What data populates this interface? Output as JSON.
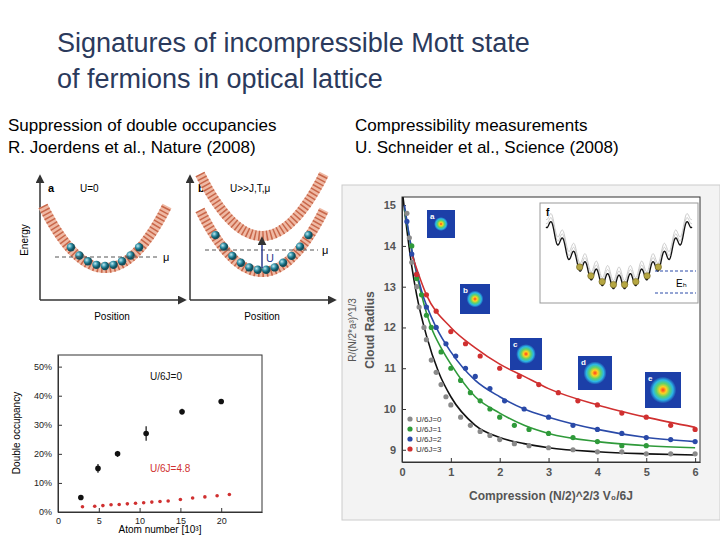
{
  "slide": {
    "title": [
      "Signatures of incompressible Mott state",
      "of fermions in optical lattice"
    ],
    "left_header": [
      "Suppression of double occupancies",
      "R. Joerdens et al., Nature (2008)"
    ],
    "right_header": [
      "Compressibility measurements",
      "U. Schneider et al., Science (2008)"
    ]
  },
  "schematic": {
    "panels": [
      {
        "letter": "a",
        "label": "U=0"
      },
      {
        "letter": "b",
        "label": "U>>J,T,μ"
      }
    ],
    "y_label": "Energy",
    "x_label": "Position",
    "mu": "μ",
    "u": "U"
  },
  "chart_data": [
    {
      "type": "scatter",
      "x_label": "Atom number [10³]",
      "y_label": "Double occupancy",
      "xlim": [
        0,
        25
      ],
      "ylim": [
        0,
        54
      ],
      "xticks": [
        0,
        5,
        10,
        15,
        20
      ],
      "yticks": [
        {
          "value": 0,
          "label": "0%"
        },
        {
          "value": 10,
          "label": "10%"
        },
        {
          "value": 20,
          "label": "20%"
        },
        {
          "value": 30,
          "label": "30%"
        },
        {
          "value": 40,
          "label": "40%"
        },
        {
          "value": 50,
          "label": "50%"
        }
      ],
      "series": [
        {
          "name": "U/6J=0",
          "color": "#111111",
          "marker": "circle",
          "x": [
            2.8,
            4.9,
            7.3,
            10.8,
            15.2,
            20.0
          ],
          "values": [
            5,
            15,
            20,
            27,
            34.5,
            38
          ],
          "errors": [
            0,
            1.5,
            1,
            2.5,
            1,
            0
          ]
        },
        {
          "name": "U/6J=4.8",
          "color": "#d03030",
          "marker": "circle",
          "x": [
            3,
            4.5,
            5.5,
            6.5,
            7.5,
            8.5,
            9.5,
            10.5,
            11.5,
            12.5,
            13.5,
            15,
            16.5,
            18,
            19.5,
            21
          ],
          "values": [
            1.8,
            2.0,
            2.2,
            2.5,
            2.6,
            2.8,
            3.0,
            3.2,
            3.4,
            3.6,
            3.8,
            4.3,
            4.8,
            5.2,
            5.6,
            6.0
          ]
        }
      ]
    },
    {
      "type": "scatter",
      "y_label": "Cloud Radius",
      "y_sublabel": "R/(N/2*a³)^1/3",
      "x_label": "Compression (N/2)^2/3 V₀/6J",
      "xlim": [
        0,
        6.1
      ],
      "ylim": [
        8.7,
        15.2
      ],
      "xticks": [
        0,
        1,
        2,
        3,
        4,
        5,
        6
      ],
      "yticks": [
        9,
        10,
        11,
        12,
        13,
        14,
        15
      ],
      "legend": "lower left",
      "series": [
        {
          "type": "line",
          "color": "#111111",
          "x": [
            0.02,
            0.1,
            0.2,
            0.3,
            0.5,
            0.75,
            1,
            1.5,
            2,
            2.5,
            3,
            4,
            5,
            6
          ],
          "values": [
            15.2,
            14.4,
            13.5,
            12.8,
            11.8,
            10.9,
            10.3,
            9.6,
            9.3,
            9.15,
            9.05,
            8.95,
            8.9,
            8.87
          ]
        },
        {
          "type": "line",
          "color": "#2f9a3a",
          "x": [
            0.05,
            0.2,
            0.4,
            0.6,
            0.8,
            1,
            1.5,
            2,
            2.5,
            3,
            4,
            5,
            6
          ],
          "values": [
            14.9,
            13.9,
            12.8,
            12.0,
            11.5,
            11.1,
            10.3,
            9.9,
            9.6,
            9.4,
            9.2,
            9.1,
            9.05
          ]
        },
        {
          "type": "line",
          "color": "#2a4aa8",
          "x": [
            0.05,
            0.2,
            0.4,
            0.7,
            1,
            1.5,
            2,
            2.5,
            3,
            4,
            5,
            6
          ],
          "values": [
            15.0,
            13.9,
            12.9,
            12.0,
            11.4,
            10.7,
            10.3,
            10.0,
            9.8,
            9.5,
            9.3,
            9.2
          ]
        },
        {
          "type": "line",
          "color": "#d03030",
          "x": [
            0.2,
            0.5,
            1,
            1.5,
            2,
            2.5,
            3,
            4,
            5,
            6
          ],
          "values": [
            13.8,
            12.8,
            12.0,
            11.5,
            11.1,
            10.8,
            10.5,
            10.1,
            9.8,
            9.55
          ]
        },
        {
          "name": "U/6J=0",
          "type": "scatter",
          "color": "#8a8a8a",
          "marker": "circle",
          "x": [
            0.1,
            0.15,
            0.2,
            0.3,
            0.35,
            0.45,
            0.5,
            0.6,
            0.7,
            0.8,
            0.9,
            1.0,
            1.2,
            1.4,
            1.6,
            1.8,
            2.0,
            2.3,
            2.6,
            3.0,
            3.5,
            4.0,
            4.5,
            5.0,
            5.5,
            6.0
          ],
          "values": [
            14.8,
            14.2,
            13.6,
            13.0,
            12.5,
            12.0,
            11.7,
            11.2,
            10.9,
            10.6,
            10.3,
            10.1,
            9.8,
            9.6,
            9.45,
            9.35,
            9.25,
            9.15,
            9.1,
            9.05,
            9.0,
            8.95,
            8.95,
            8.9,
            8.9,
            8.9
          ]
        },
        {
          "name": "U/6J=1",
          "type": "scatter",
          "color": "#2f9a3a",
          "marker": "circle",
          "x": [
            0.2,
            0.3,
            0.4,
            0.5,
            0.6,
            0.8,
            1.0,
            1.2,
            1.4,
            1.6,
            1.8,
            2.0,
            2.3,
            2.6,
            3.0,
            3.5,
            4.0,
            4.5,
            5.0
          ],
          "values": [
            14.0,
            13.2,
            12.8,
            12.3,
            12.0,
            11.4,
            11.0,
            10.7,
            10.4,
            10.2,
            10.0,
            9.8,
            9.6,
            9.5,
            9.4,
            9.3,
            9.2,
            9.1,
            9.1
          ]
        },
        {
          "name": "U/6J=2",
          "type": "scatter",
          "color": "#2a4aa8",
          "marker": "circle",
          "x": [
            0.1,
            0.2,
            0.3,
            0.5,
            0.7,
            0.9,
            1.1,
            1.3,
            1.5,
            1.8,
            2.1,
            2.5,
            3.0,
            3.5,
            4.0,
            4.5,
            5.0,
            5.5,
            6.0
          ],
          "values": [
            14.6,
            13.8,
            13.3,
            12.5,
            12.0,
            11.6,
            11.3,
            11.0,
            10.8,
            10.5,
            10.2,
            10.0,
            9.8,
            9.6,
            9.5,
            9.4,
            9.3,
            9.25,
            9.2
          ]
        },
        {
          "name": "U/6J=3",
          "type": "scatter",
          "color": "#d03030",
          "marker": "circle",
          "x": [
            0.3,
            0.5,
            0.7,
            1.0,
            1.3,
            1.6,
            2.0,
            2.4,
            2.8,
            3.2,
            3.6,
            4.0,
            4.5,
            5.0,
            5.5,
            6.0
          ],
          "values": [
            13.3,
            12.8,
            12.4,
            11.9,
            11.6,
            11.3,
            11.0,
            10.8,
            10.6,
            10.4,
            10.2,
            10.1,
            9.9,
            9.8,
            9.6,
            9.5
          ]
        }
      ],
      "insets": [
        "a",
        "b",
        "c",
        "d",
        "e"
      ],
      "inset_f": {
        "label": "f",
        "energy": "Eₕ"
      }
    }
  ]
}
